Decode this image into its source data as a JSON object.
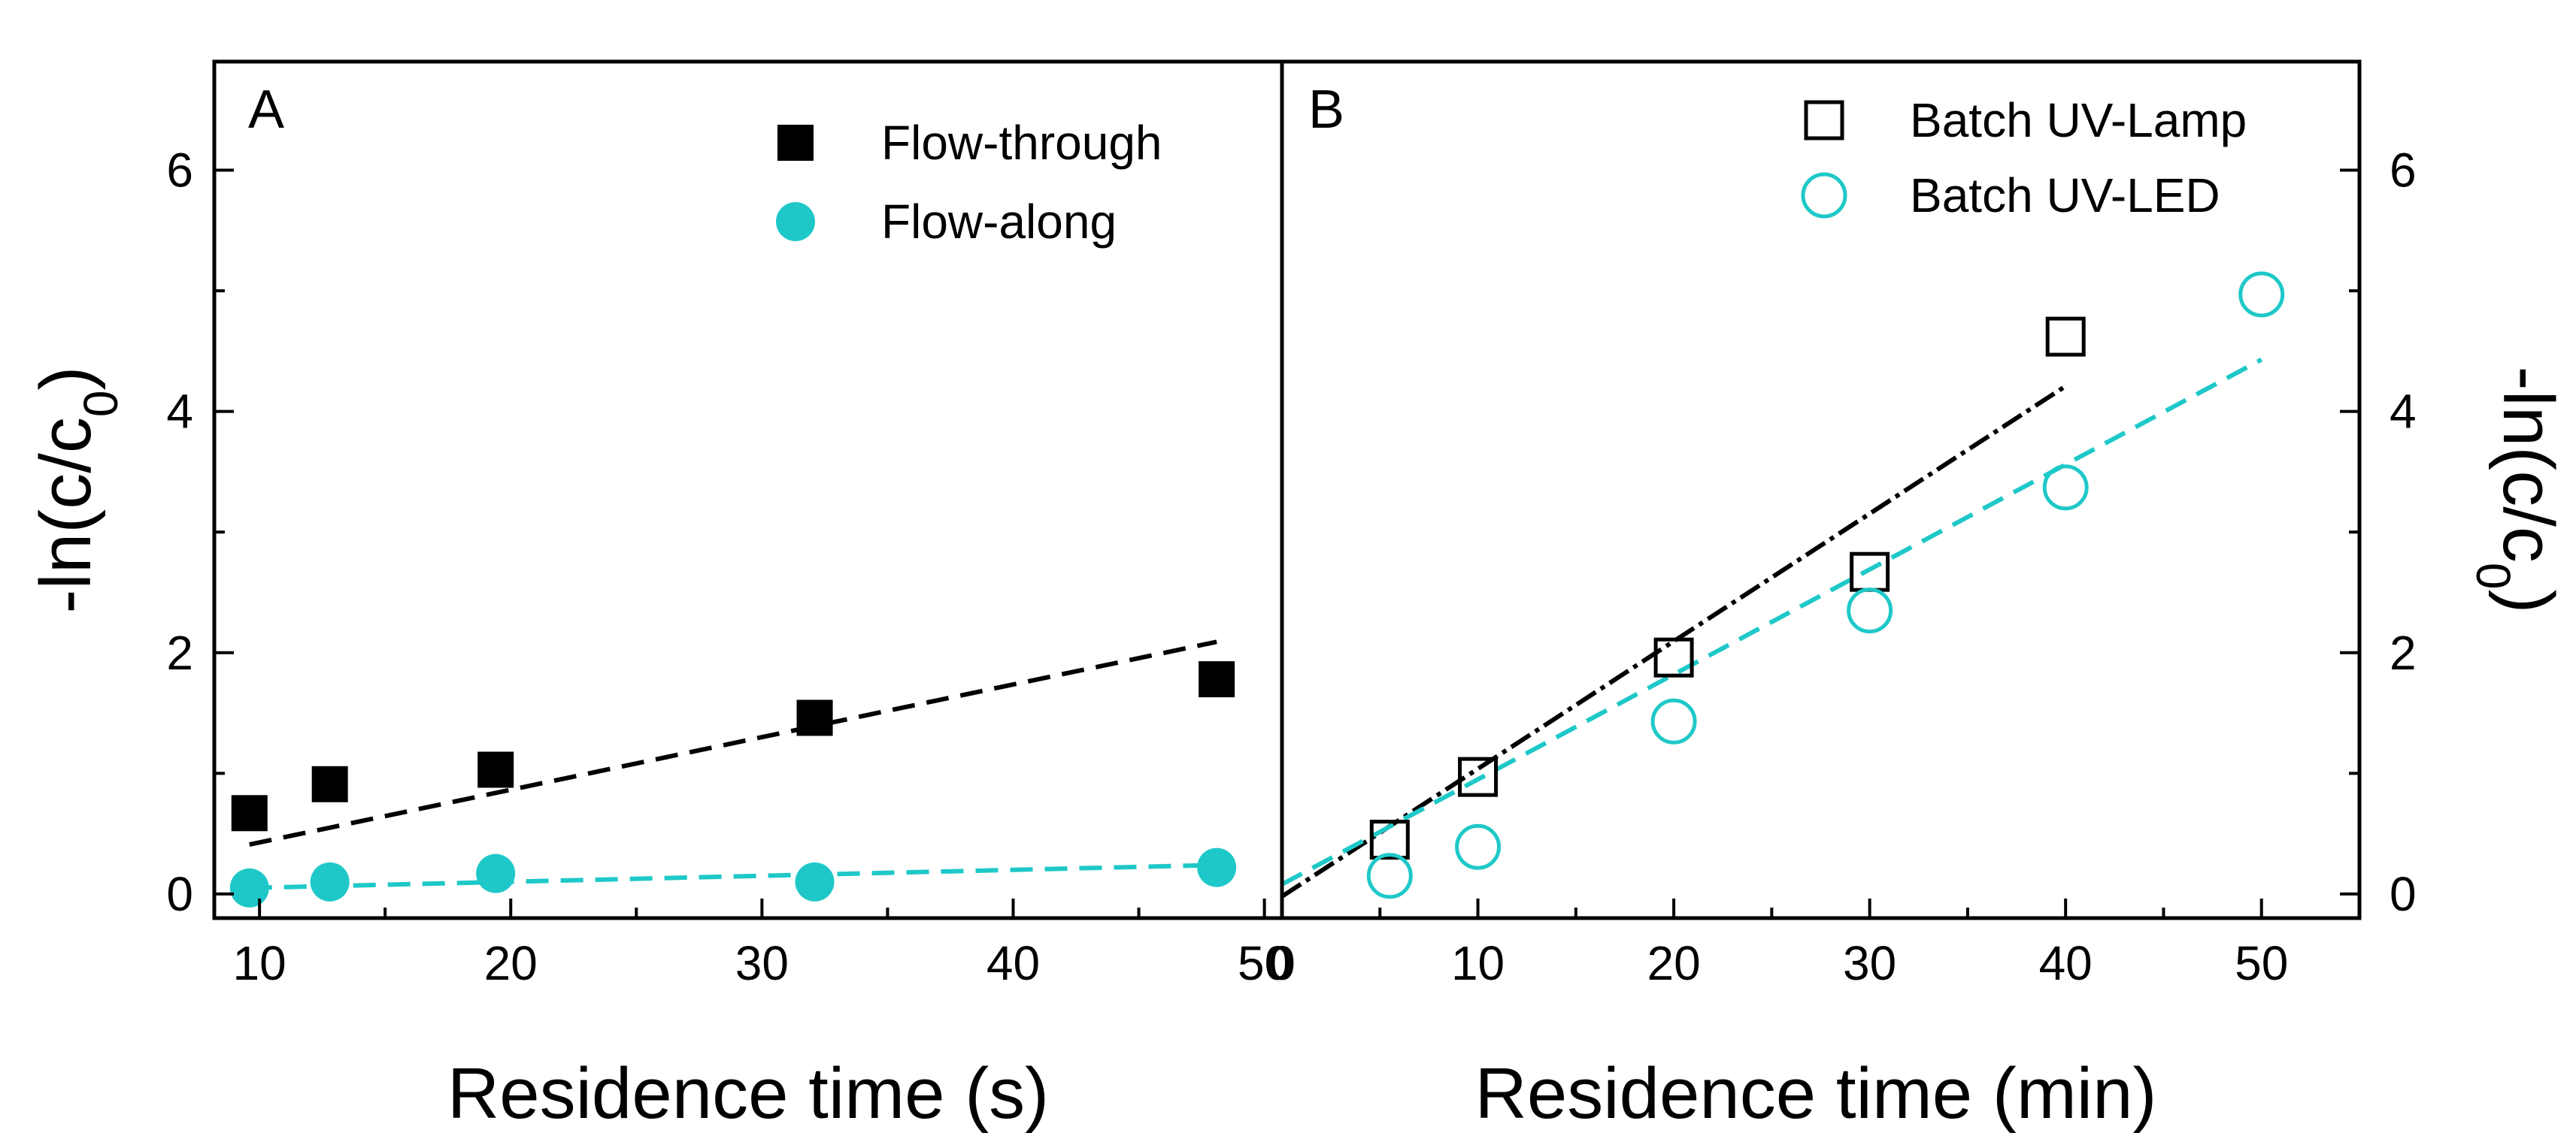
{
  "colors": {
    "black": "#000000",
    "cyan": "#1fc8c8",
    "frame": "#000000"
  },
  "chart_data": [
    {
      "panel": "A",
      "type": "scatter",
      "title": "",
      "xlabel": "Residence time (s)",
      "ylabel_prefix": "-ln(c/c",
      "ylabel_sub": "0",
      "ylabel_suffix": ")",
      "xlim": [
        8.2,
        50.7
      ],
      "ylim": [
        -0.2,
        6.9
      ],
      "xticks": [
        10,
        20,
        30,
        40,
        50
      ],
      "yticks": [
        0,
        2,
        4,
        6
      ],
      "series": [
        {
          "name": "Flow-through",
          "marker": "filled-square",
          "color": "#000000",
          "x": [
            9.6,
            12.8,
            19.4,
            32.1,
            48.1
          ],
          "y": [
            0.67,
            0.91,
            1.03,
            1.46,
            1.78
          ],
          "fit": {
            "x": [
              9.6,
              48.1
            ],
            "y": [
              0.41,
              2.09
            ]
          }
        },
        {
          "name": "Flow-along",
          "marker": "filled-circle",
          "color": "#1fc8c8",
          "x": [
            9.6,
            12.8,
            19.4,
            32.1,
            48.1
          ],
          "y": [
            0.05,
            0.1,
            0.17,
            0.1,
            0.22
          ],
          "fit": {
            "x": [
              9.6,
              48.1
            ],
            "y": [
              0.05,
              0.24
            ]
          }
        }
      ],
      "legend": "top-right"
    },
    {
      "panel": "B",
      "type": "scatter",
      "title": "",
      "xlabel": "Residence time (min)",
      "ylabel_prefix": "-ln(c/c",
      "ylabel_sub": "0",
      "ylabel_suffix": ")",
      "xlim": [
        0,
        55
      ],
      "ylim": [
        -0.2,
        6.9
      ],
      "xticks": [
        0,
        10,
        20,
        30,
        40,
        50
      ],
      "yticks": [
        0,
        2,
        4,
        6
      ],
      "series": [
        {
          "name": "Batch UV-Lamp",
          "marker": "open-square",
          "color": "#000000",
          "x": [
            5.5,
            10,
            20,
            30,
            40
          ],
          "y": [
            0.45,
            0.97,
            1.96,
            2.67,
            4.62
          ],
          "fit": {
            "x": [
              0,
              40
            ],
            "y": [
              -0.02,
              4.21
            ]
          }
        },
        {
          "name": "Batch UV-LED",
          "marker": "open-circle",
          "color": "#1fc8c8",
          "x": [
            5.5,
            10,
            20,
            30,
            40,
            50
          ],
          "y": [
            0.15,
            0.39,
            1.43,
            2.35,
            3.37,
            4.97
          ],
          "fit": {
            "x": [
              0,
              50
            ],
            "y": [
              0.08,
              4.43
            ]
          }
        }
      ],
      "legend": "top-right"
    }
  ]
}
